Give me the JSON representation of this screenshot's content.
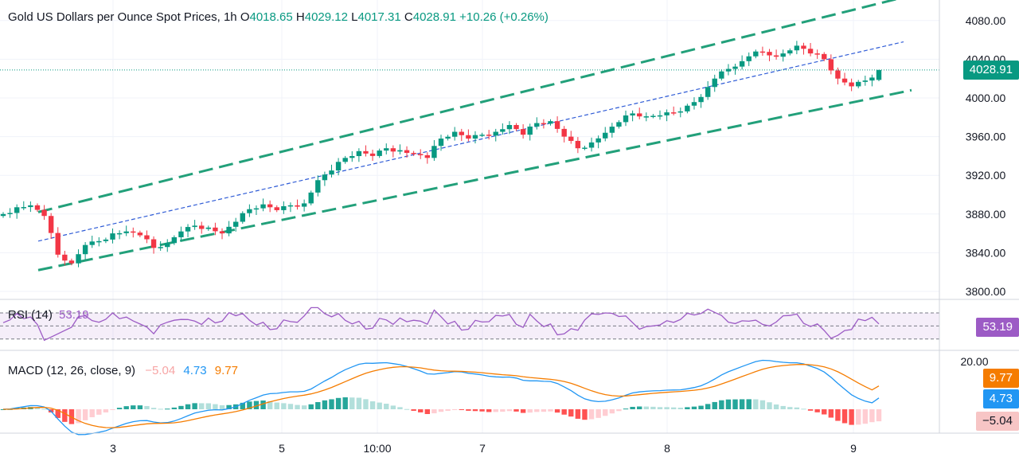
{
  "header": {
    "title": "Gold US Dollars per Ounce Spot Prices, 1h",
    "open_key": "O",
    "open": "4018.65",
    "high_key": "H",
    "high": "4029.12",
    "low_key": "L",
    "low": "4017.31",
    "close_key": "C",
    "close": "4028.91",
    "change": "+10.26 (+0.26%)"
  },
  "price_axis": {
    "ticks": [
      "4080.00",
      "4040.00",
      "4000.00",
      "3960.00",
      "3920.00",
      "3880.00",
      "3840.00",
      "3800.00"
    ],
    "current_tag": "4028.91"
  },
  "rsi_pane": {
    "label": "RSI (14)",
    "value": "53.19",
    "tag": "53.19",
    "color": "#9c5bc5"
  },
  "macd_pane": {
    "label": "MACD (12, 26, close, 9)",
    "hist_value": "−5.04",
    "macd_value": "4.73",
    "signal_value": "9.77",
    "axis_top": "20.00",
    "tag_signal": "9.77",
    "tag_macd": "4.73",
    "tag_hist": "−5.04"
  },
  "time_axis": [
    "3",
    "5",
    "10:00",
    "7",
    "8",
    "9"
  ],
  "colors": {
    "up": "#089981",
    "down": "#f23645",
    "channel": "#22a07a",
    "midline": "#2e5bd6",
    "macd": "#2196f3",
    "signal": "#f57c00"
  },
  "chart_data": {
    "type": "candlestick",
    "title": "Gold US Dollars per Ounce Spot Prices, 1h",
    "interval": "1h",
    "y_range": [
      3800,
      4090
    ],
    "last": {
      "open": 4018.65,
      "high": 4029.12,
      "low": 4017.31,
      "close": 4028.91,
      "change": 10.26,
      "change_pct": 0.26
    },
    "anchors": [
      3880,
      3887,
      3889,
      3878,
      3838,
      3829,
      3848,
      3852,
      3860,
      3862,
      3858,
      3845,
      3850,
      3862,
      3868,
      3866,
      3860,
      3872,
      3885,
      3890,
      3884,
      3889,
      3891,
      3915,
      3925,
      3938,
      3945,
      3940,
      3948,
      3946,
      3942,
      3938,
      3958,
      3965,
      3958,
      3962,
      3965,
      3972,
      3962,
      3974,
      3976,
      3960,
      3948,
      3954,
      3964,
      3975,
      3984,
      3981,
      3982,
      3985,
      3992,
      4001,
      4020,
      4030,
      4038,
      4048,
      4044,
      4046,
      4054,
      4046,
      4040,
      4020,
      4012,
      4018,
      4028.91
    ],
    "rsi": {
      "value": 53.19,
      "levels": [
        70,
        50,
        30
      ]
    },
    "macd": {
      "params": "12, 26, close, 9",
      "histogram": -5.04,
      "macd": 4.73,
      "signal": 9.77
    }
  }
}
